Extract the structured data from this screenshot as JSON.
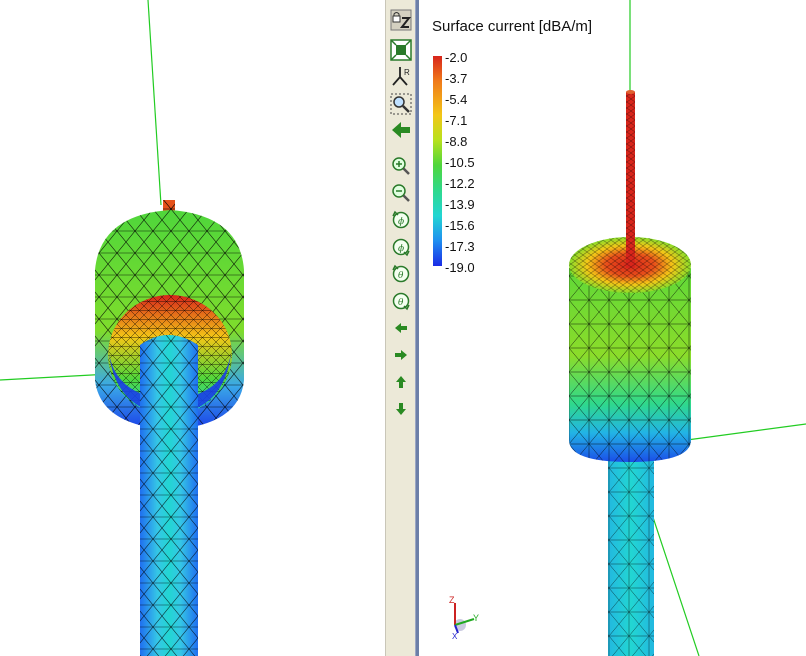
{
  "legend": {
    "title": "Surface current [dBA/m]",
    "ticks": [
      "-2.0",
      "-3.7",
      "-5.4",
      "-7.1",
      "-8.8",
      "-10.5",
      "-12.2",
      "-13.9",
      "-15.6",
      "-17.3",
      "-19.0"
    ]
  },
  "toolbar": {
    "buttons": [
      "lock-z-button",
      "zoom-extents-button",
      "reset-view-button",
      "zoom-window-button",
      "back-button",
      "zoom-in-button",
      "zoom-out-button",
      "rotate-phi-ccw-button",
      "rotate-phi-cw-button",
      "rotate-theta-ccw-button",
      "rotate-theta-cw-button",
      "pan-left-button",
      "pan-right-button",
      "pan-up-button",
      "pan-down-button"
    ]
  },
  "axis_triad": {
    "z_label": "Z",
    "y_label": "Y",
    "x_label": "X"
  },
  "colors": {
    "max": "#d8251b",
    "min": "#1a2be6",
    "mesh": "#000000",
    "axis_line": "#22cc22"
  }
}
